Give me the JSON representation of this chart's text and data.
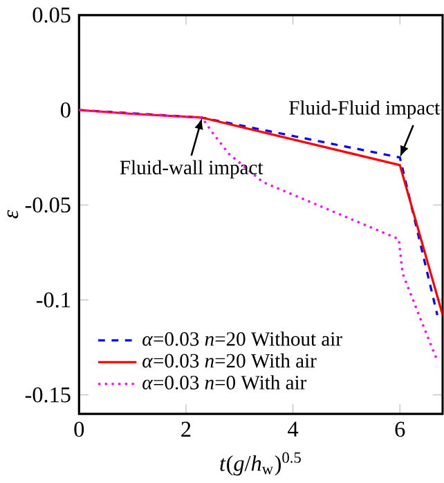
{
  "chart_data": {
    "type": "line",
    "xlabel": "*t*(*g*/*h*$_{w}$)$^{0.5}$",
    "ylabel": "*ε*",
    "xlim": [
      0,
      6.8
    ],
    "ylim": [
      -0.16,
      0.05
    ],
    "xticks": [
      0,
      2,
      4,
      6
    ],
    "yticks": [
      -0.15,
      -0.1,
      -0.05,
      0,
      0.05
    ],
    "legend": "bottom left",
    "grid": false,
    "series": [
      {
        "name": "*α*=0.03 *n*=20 Without air",
        "color": "#0000ff",
        "line_style": "dashed",
        "x": [
          0,
          2.3,
          6.0,
          6.7
        ],
        "values": [
          0,
          -0.004,
          -0.025,
          -0.108
        ]
      },
      {
        "name": "*α*=0.03 *n*=20 With air",
        "color": "#ff0000",
        "line_style": "solid",
        "x": [
          0,
          1,
          2.3,
          6.0,
          6.8
        ],
        "values": [
          0,
          -0.002,
          -0.004,
          -0.029,
          -0.108
        ]
      },
      {
        "name": "*α*=0.03 *n*=0  With air",
        "color": "#ff00ff",
        "line_style": "dotted",
        "x": [
          0,
          1,
          2.3,
          2.47,
          2.8,
          3.44,
          5.98,
          6.05,
          6.4,
          6.7
        ],
        "values": [
          0,
          -0.002,
          -0.004,
          -0.011,
          -0.023,
          -0.038,
          -0.068,
          -0.086,
          -0.111,
          -0.132
        ]
      }
    ],
    "annotations": [
      {
        "text": "Fluid-Fluid impact",
        "x": 6.0,
        "y": -0.025
      },
      {
        "text": "Fluid-wall impact",
        "x": 2.3,
        "y": -0.004
      }
    ]
  }
}
